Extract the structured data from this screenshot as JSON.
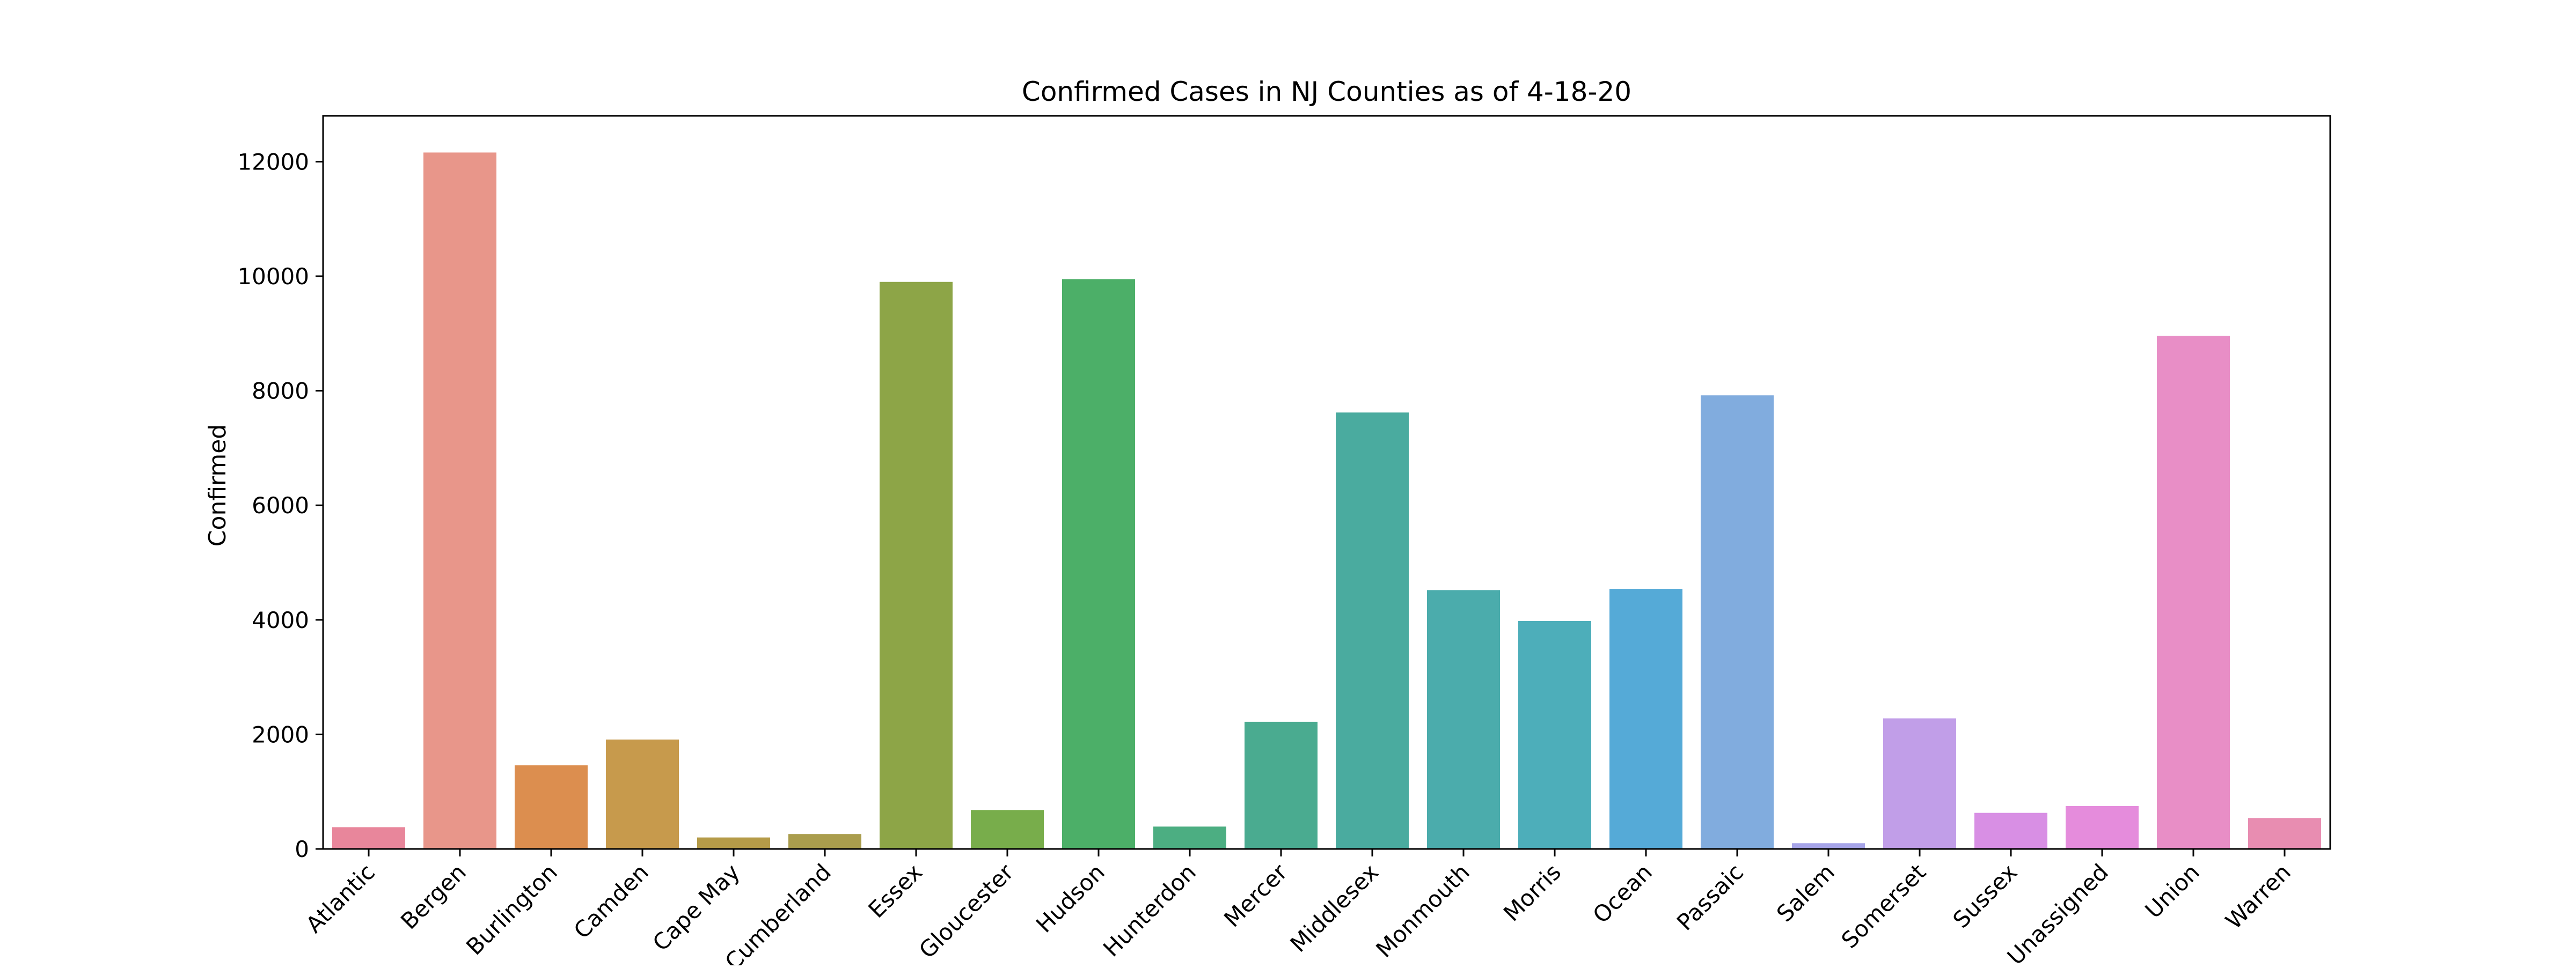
{
  "chart_data": {
    "type": "bar",
    "title": "Confirmed Cases in NJ Counties as of 4-18-20",
    "xlabel": "",
    "ylabel": "Confirmed",
    "ylim": [
      0,
      12800
    ],
    "yticks": [
      0,
      2000,
      4000,
      6000,
      8000,
      10000,
      12000
    ],
    "grid": false,
    "categories": [
      "Atlantic",
      "Bergen",
      "Burlington",
      "Camden",
      "Cape May",
      "Cumberland",
      "Essex",
      "Gloucester",
      "Hudson",
      "Hunterdon",
      "Mercer",
      "Middlesex",
      "Monmouth",
      "Morris",
      "Ocean",
      "Passaic",
      "Salem",
      "Somerset",
      "Sussex",
      "Unassigned",
      "Union",
      "Warren"
    ],
    "values": [
      380,
      12160,
      1460,
      1910,
      200,
      260,
      9900,
      680,
      9950,
      390,
      2220,
      7620,
      4520,
      3980,
      4540,
      7920,
      100,
      2280,
      630,
      750,
      8960,
      540
    ],
    "colors": [
      "#e8869b",
      "#e8968a",
      "#dc8e4f",
      "#c79a4c",
      "#b59b48",
      "#aa9d4d",
      "#8da547",
      "#78ad4b",
      "#4caf68",
      "#4cae82",
      "#4aab90",
      "#4aab9f",
      "#4bacac",
      "#4daeba",
      "#55aad7",
      "#81acde",
      "#a6a4e8",
      "#c19ee8",
      "#d88fe4",
      "#e58cdc",
      "#e88ec6",
      "#e88db1"
    ]
  }
}
